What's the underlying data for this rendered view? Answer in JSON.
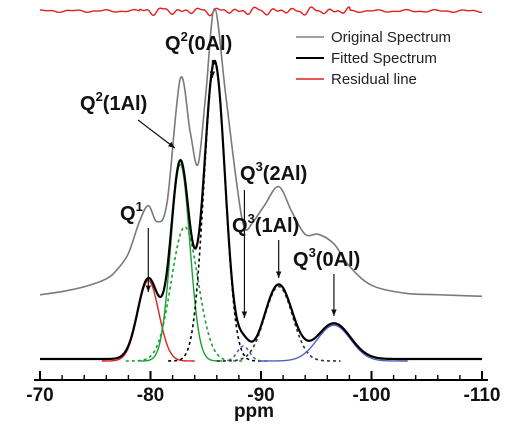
{
  "chart_data": {
    "type": "line",
    "xlabel": "ppm",
    "xlim": [
      -70,
      -110
    ],
    "x_ticks": [
      "-70",
      "-80",
      "-90",
      "-100",
      "-110"
    ],
    "legend": {
      "position": "top-right",
      "entries": [
        {
          "name": "Original Spectrum",
          "color": "#808080"
        },
        {
          "name": "Fitted Spectrum",
          "color": "#000000"
        },
        {
          "name": "Residual line",
          "color": "#e02020"
        }
      ]
    },
    "annotations": [
      {
        "base": "Q",
        "sup": "1",
        "rest": "",
        "ppm": -79.8
      },
      {
        "base": "Q",
        "sup": "2",
        "rest": "(1Al)",
        "ppm": -82.7
      },
      {
        "base": "Q",
        "sup": "2",
        "rest": "(0Al)",
        "ppm": -85.8
      },
      {
        "base": "Q",
        "sup": "3",
        "rest": "(2Al)",
        "ppm": -88.5
      },
      {
        "base": "Q",
        "sup": "3",
        "rest": "(1Al)",
        "ppm": -91.6
      },
      {
        "base": "Q",
        "sup": "3",
        "rest": "(0Al)",
        "ppm": -96.6
      }
    ],
    "peaks": [
      {
        "name": "Q1",
        "center": -79.8,
        "height": 0.27,
        "width": 0.95,
        "color": "#e02020",
        "dash": false
      },
      {
        "name": "Q2(1Al)",
        "center": -82.7,
        "height": 0.66,
        "width": 0.85,
        "color": "#18a030",
        "dash": false
      },
      {
        "name": "Q2(1Al) dashed",
        "center": -83.1,
        "height": 0.45,
        "width": 1.2,
        "color": "#18a030",
        "dash": true
      },
      {
        "name": "Q2(0Al)",
        "center": -85.8,
        "height": 1.0,
        "width": 0.95,
        "color": "#000000",
        "dash": true
      },
      {
        "name": "Q3(2Al)",
        "center": -88.4,
        "height": 0.05,
        "width": 0.55,
        "color": "#5060c0",
        "dash": true
      },
      {
        "name": "Q3(1Al)",
        "center": -91.6,
        "height": 0.25,
        "width": 1.25,
        "color": "#333333",
        "dash": true
      },
      {
        "name": "Q3(0Al)",
        "center": -96.6,
        "height": 0.12,
        "width": 1.5,
        "color": "#5060c0",
        "dash": false
      }
    ],
    "original_spectrum": {
      "x": [
        -70,
        -72,
        -74,
        -76,
        -77,
        -78,
        -79,
        -79.8,
        -80.6,
        -81.5,
        -82.7,
        -83.6,
        -84.3,
        -85.0,
        -85.8,
        -86.8,
        -87.8,
        -88.5,
        -89.3,
        -90.3,
        -91.6,
        -92.8,
        -94.0,
        -95.2,
        -96.6,
        -98.0,
        -100,
        -103,
        -106,
        -110
      ],
      "y": [
        0.07,
        0.08,
        0.095,
        0.12,
        0.15,
        0.2,
        0.3,
        0.35,
        0.3,
        0.36,
        0.75,
        0.58,
        0.48,
        0.7,
        0.97,
        0.7,
        0.42,
        0.28,
        0.3,
        0.35,
        0.41,
        0.33,
        0.26,
        0.26,
        0.23,
        0.16,
        0.1,
        0.075,
        0.07,
        0.065
      ]
    }
  }
}
